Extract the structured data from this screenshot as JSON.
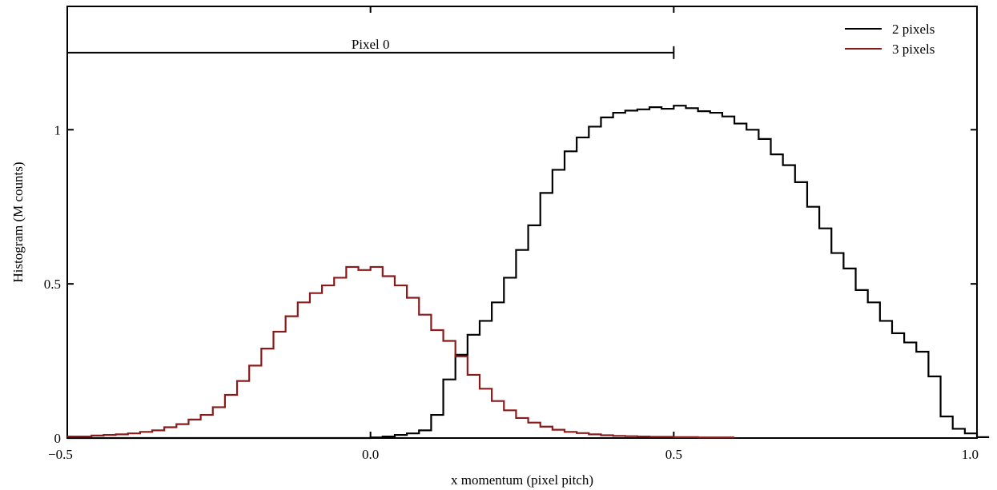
{
  "chart_data": {
    "type": "line",
    "style": "histogram-step",
    "xlabel": "x momentum (pixel pitch)",
    "ylabel": "Histogram (M counts)",
    "xlim": [
      -0.5,
      1.0
    ],
    "ylim": [
      0,
      1.4
    ],
    "xticks": [
      -0.5,
      0.0,
      0.5,
      1.0
    ],
    "xtick_labels": [
      "−0.5",
      "0.0",
      "0.5",
      "1.0"
    ],
    "yticks": [
      0,
      0.5,
      1
    ],
    "ytick_labels": [
      "0",
      "0.5",
      "1"
    ],
    "grid": false,
    "legend_position": "top-right",
    "bin_start": -0.5,
    "bin_width": 0.02,
    "series": [
      {
        "name": "2 pixels",
        "color": "#000000",
        "values": [
          0,
          0,
          0,
          0,
          0,
          0,
          0,
          0,
          0,
          0,
          0,
          0,
          0,
          0,
          0,
          0,
          0,
          0,
          0,
          0,
          0,
          0,
          0,
          0,
          0,
          0.002,
          0.005,
          0.01,
          0.015,
          0.025,
          0.075,
          0.19,
          0.27,
          0.335,
          0.38,
          0.44,
          0.52,
          0.61,
          0.69,
          0.795,
          0.87,
          0.93,
          0.975,
          1.01,
          1.04,
          1.055,
          1.062,
          1.066,
          1.073,
          1.068,
          1.078,
          1.07,
          1.06,
          1.055,
          1.043,
          1.02,
          1.0,
          0.97,
          0.92,
          0.885,
          0.83,
          0.75,
          0.68,
          0.6,
          0.55,
          0.48,
          0.44,
          0.38,
          0.34,
          0.31,
          0.28,
          0.2,
          0.07,
          0.03,
          0.015,
          0.003
        ]
      },
      {
        "name": "3 pixels",
        "color": "#8b1a1a",
        "values": [
          0.005,
          0.005,
          0.008,
          0.01,
          0.012,
          0.015,
          0.02,
          0.025,
          0.035,
          0.045,
          0.06,
          0.075,
          0.1,
          0.14,
          0.185,
          0.235,
          0.29,
          0.345,
          0.395,
          0.44,
          0.47,
          0.495,
          0.52,
          0.555,
          0.545,
          0.555,
          0.525,
          0.495,
          0.455,
          0.4,
          0.35,
          0.315,
          0.265,
          0.205,
          0.16,
          0.12,
          0.09,
          0.065,
          0.05,
          0.037,
          0.027,
          0.02,
          0.016,
          0.012,
          0.009,
          0.007,
          0.006,
          0.005,
          0.004,
          0.004,
          0.003,
          0.003,
          0.002,
          0.002,
          0.002
        ]
      }
    ],
    "annotations": [
      {
        "text": "Pixel 0",
        "type": "range-bar",
        "x_start": -0.5,
        "x_end": 0.5,
        "y": 1.25
      }
    ]
  }
}
